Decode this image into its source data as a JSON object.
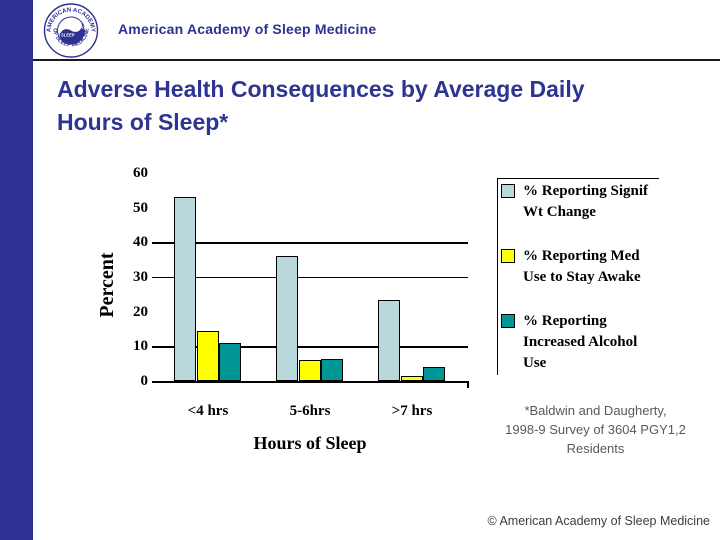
{
  "header": {
    "org_name": "American Academy of Sleep Medicine",
    "logo": {
      "arc_top": "AMERICAN ACADEMY",
      "arc_bottom": "OF SLEEP MEDICINE",
      "wake": "WAKE",
      "sleep": "SLEEP"
    }
  },
  "title": "Adverse Health Consequences by Average Daily Hours of Sleep*",
  "chart_data": {
    "type": "bar",
    "categories": [
      "<4 hrs",
      "5-6hrs",
      ">7 hrs"
    ],
    "series": [
      {
        "name": "% Reporting Signif Wt Change",
        "label_lines": "% Reporting Signif\nWt Change",
        "color": "#B9D8DC",
        "values": [
          53,
          36,
          23.5
        ]
      },
      {
        "name": "% Reporting Med Use to Stay Awake",
        "label_lines": "% Reporting Med\nUse to Stay Awake",
        "color": "#FFFF00",
        "values": [
          14.5,
          6,
          1.5
        ]
      },
      {
        "name": "% Reporting Increased Alcohol Use",
        "label_lines": "% Reporting\nIncreased Alcohol\nUse",
        "color": "#009696",
        "values": [
          11,
          6.3,
          4
        ]
      }
    ],
    "xlabel": "Hours of Sleep",
    "ylabel": "Percent",
    "ylim": [
      0,
      60
    ],
    "yticks": [
      0,
      10,
      20,
      30,
      40,
      50,
      60
    ],
    "gridlines": [
      10,
      30,
      40
    ],
    "legend_position": "right",
    "grid": "partial-horizontal"
  },
  "footnote": "*Baldwin and Daugherty,\n1998-9 Survey of 3604 PGY1,2\nResidents",
  "copyright": "© American Academy of Sleep Medicine",
  "colors": {
    "brand_navy": "#2E3192",
    "bar_light_blue": "#B9D8DC",
    "bar_yellow": "#FFFF00",
    "bar_teal": "#009696"
  }
}
